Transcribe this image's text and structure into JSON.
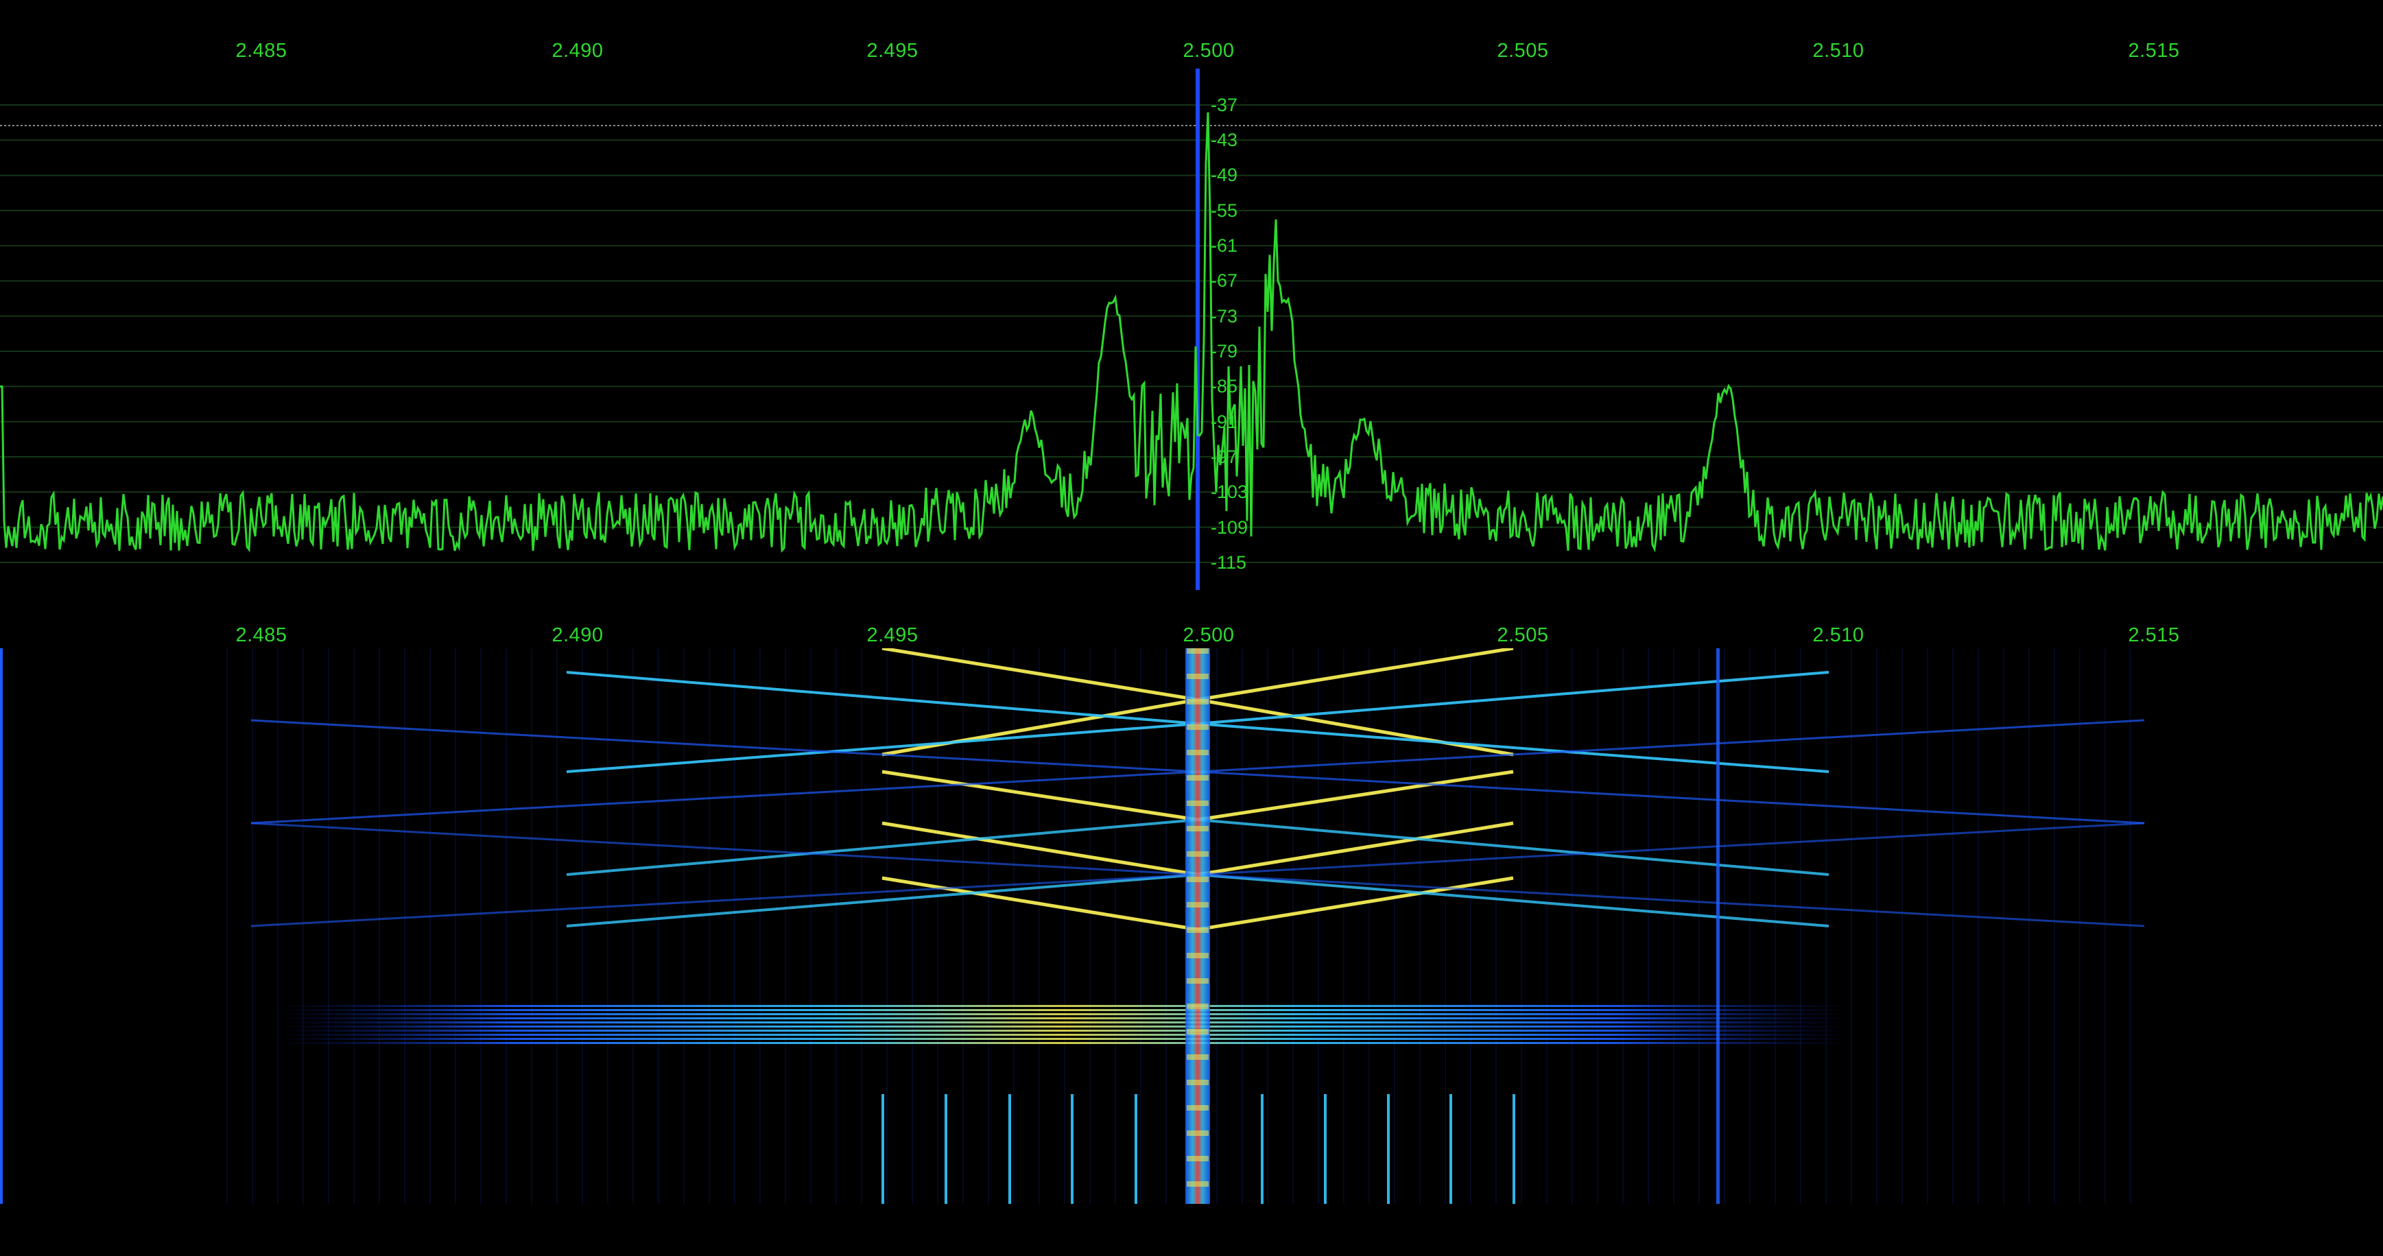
{
  "colors": {
    "background": "#000000",
    "trace": "#2ed82e",
    "grid": "#163616",
    "center_marker": "#1f47ff",
    "reference_line": "#8a8a8a"
  },
  "top_axis": {
    "labels": [
      "2.485",
      "2.490",
      "2.495",
      "2.500",
      "2.505",
      "2.510",
      "2.515"
    ]
  },
  "mid_axis": {
    "labels": [
      "2.485",
      "2.490",
      "2.495",
      "2.500",
      "2.505",
      "2.510",
      "2.515"
    ]
  },
  "db_scale": {
    "labels": [
      "-37",
      "-43",
      "-49",
      "-55",
      "-61",
      "-67",
      "-73",
      "-79",
      "-85",
      "-91",
      "-97",
      "-103",
      "-109",
      "-115"
    ]
  },
  "spectrum": {
    "center_freq": 2.5,
    "noise_floor_db": -108,
    "reference_level_db": -40,
    "peaks": [
      {
        "freq": 2.5,
        "db": -36
      },
      {
        "freq": 2.4985,
        "db": -69
      },
      {
        "freq": 2.5012,
        "db": -69
      },
      {
        "freq": 2.4972,
        "db": -91
      },
      {
        "freq": 2.5025,
        "db": -91
      },
      {
        "freq": 2.5082,
        "db": -85
      }
    ]
  },
  "waterfall": {
    "colormap": [
      "#000010",
      "#0a1a8a",
      "#1e5cff",
      "#35c8ff",
      "#e8e050",
      "#ff5050"
    ]
  }
}
